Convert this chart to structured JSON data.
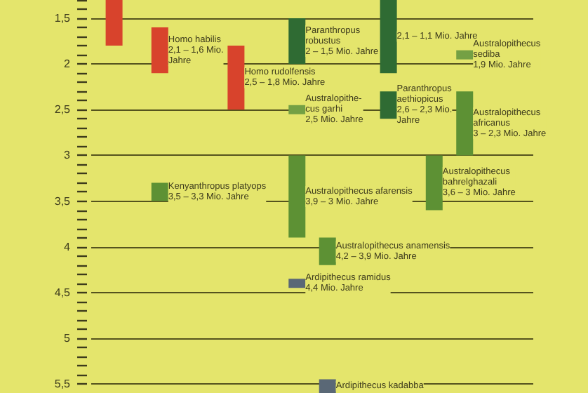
{
  "chart_data": {
    "type": "bar",
    "tick_labels": "y",
    "grid": "y",
    "categories": [
      null,
      null,
      null,
      null,
      null,
      null,
      null,
      null,
      null,
      null,
      null,
      null,
      null,
      null,
      null,
      null,
      null,
      null,
      null,
      null,
      null,
      null,
      null,
      null,
      null,
      null,
      null,
      null,
      null
    ],
    "ylim": [
      5.6,
      1.3
    ],
    "yticks": [
      {
        "value": 1.3,
        "label": null
      },
      {
        "value": 1.4,
        "label": null
      },
      {
        "value": 1.5,
        "label": "1,5"
      },
      {
        "value": 1.6,
        "label": null
      },
      {
        "value": 1.7,
        "label": null
      },
      {
        "value": 1.8,
        "label": null
      },
      {
        "value": 1.9,
        "label": null
      },
      2,
      {
        "value": 2.1,
        "label": null
      },
      {
        "value": 2.2,
        "label": null
      },
      {
        "value": 2.3,
        "label": null
      },
      {
        "value": 2.4,
        "label": null
      },
      {
        "value": 2.5,
        "label": "2,5"
      },
      {
        "value": 2.6,
        "label": null
      },
      {
        "value": 2.7,
        "label": null
      },
      {
        "value": 2.8,
        "label": null
      },
      {
        "value": 2.9,
        "label": null
      },
      3,
      {
        "value": 3.1,
        "label": null
      },
      {
        "value": 3.2,
        "label": null
      },
      {
        "value": 3.3,
        "label": null
      },
      {
        "value": 3.4,
        "label": null
      },
      {
        "value": 3.5,
        "label": "3,5"
      },
      {
        "value": 3.6,
        "label": null
      },
      {
        "value": 3.7,
        "label": null
      },
      {
        "value": 3.8,
        "label": null
      },
      {
        "value": 3.9,
        "label": null
      },
      4,
      {
        "value": 4.1,
        "label": null
      },
      {
        "value": 4.2,
        "label": null
      },
      {
        "value": 4.3,
        "label": null
      },
      {
        "value": 4.4,
        "label": null
      },
      {
        "value": 4.5,
        "label": "4,5"
      },
      {
        "value": 4.6,
        "label": null
      },
      {
        "value": 4.7,
        "label": null
      },
      {
        "value": 4.8,
        "label": null
      },
      {
        "value": 4.9,
        "label": null
      },
      5,
      {
        "value": 5.1,
        "label": null
      },
      {
        "value": 5.2,
        "label": null
      },
      {
        "value": 5.3,
        "label": null
      },
      {
        "value": 5.4,
        "label": null
      },
      {
        "value": 5.5,
        "label": "5,5"
      }
    ],
    "series": [
      {
        "color": "#d8432c",
        "values": [
          null,
          0.5,
          null,
          null,
          null,
          null,
          null,
          null,
          null,
          null,
          null,
          null,
          null,
          null,
          null,
          null,
          null,
          null,
          null,
          null,
          null,
          null,
          null,
          null,
          null,
          null,
          null,
          null,
          null
        ],
        "base": [
          null,
          1.3,
          null,
          null,
          null,
          null,
          null,
          null,
          null,
          null,
          null,
          null,
          null,
          null,
          null,
          null,
          null,
          null,
          null,
          null,
          null,
          null,
          null,
          null,
          null,
          null,
          null,
          null,
          null
        ]
      },
      {
        "name": "Homo habilis\n2,1 – 1,6 Mio.\nJahre",
        "color": "#d8432c",
        "values": [
          null,
          null,
          null,
          null,
          0.5,
          null,
          null,
          null,
          null,
          null,
          null,
          null,
          null,
          null,
          null,
          null,
          null,
          null,
          null,
          null,
          null,
          null,
          null,
          null,
          null,
          null,
          null,
          null,
          null
        ],
        "base": [
          null,
          null,
          null,
          null,
          1.6,
          null,
          null,
          null,
          null,
          null,
          null,
          null,
          null,
          null,
          null,
          null,
          null,
          null,
          null,
          null,
          null,
          null,
          null,
          null,
          null,
          null,
          null,
          null,
          null
        ]
      },
      {
        "name": "Homo rudolfensis\n2,5 – 1,8 Mio. Jahre",
        "color": "#d8432c",
        "values": [
          null,
          null,
          null,
          null,
          null,
          null,
          null,
          null,
          null,
          0.7,
          null,
          null,
          null,
          null,
          null,
          null,
          null,
          null,
          null,
          null,
          null,
          null,
          null,
          null,
          null,
          null,
          null,
          null,
          null
        ],
        "base": [
          null,
          null,
          null,
          null,
          null,
          null,
          null,
          null,
          null,
          1.8,
          null,
          null,
          null,
          null,
          null,
          null,
          null,
          null,
          null,
          null,
          null,
          null,
          null,
          null,
          null,
          null,
          null,
          null,
          null
        ]
      },
      {
        "name": "Paranthropus\nrobustus\n2 – 1,5 Mio. Jahre",
        "color": "#2f6b33",
        "values": [
          null,
          null,
          null,
          null,
          null,
          null,
          null,
          null,
          null,
          null,
          null,
          null,
          null,
          0.5,
          null,
          null,
          null,
          null,
          null,
          null,
          null,
          null,
          null,
          null,
          null,
          null,
          null,
          null,
          null
        ],
        "base": [
          null,
          null,
          null,
          null,
          null,
          null,
          null,
          null,
          null,
          null,
          null,
          null,
          null,
          1.5,
          null,
          null,
          null,
          null,
          null,
          null,
          null,
          null,
          null,
          null,
          null,
          null,
          null,
          null,
          null
        ]
      },
      {
        "name": "2,1 – 1,1 Mio. Jahre",
        "color": "#2f6b33",
        "values": [
          null,
          null,
          null,
          null,
          null,
          null,
          null,
          null,
          null,
          null,
          null,
          null,
          null,
          null,
          null,
          null,
          null,
          null,
          null,
          0.8,
          null,
          null,
          null,
          null,
          null,
          null,
          null,
          null,
          null
        ],
        "base": [
          null,
          null,
          null,
          null,
          null,
          null,
          null,
          null,
          null,
          null,
          null,
          null,
          null,
          null,
          null,
          null,
          null,
          null,
          null,
          1.3,
          null,
          null,
          null,
          null,
          null,
          null,
          null,
          null,
          null
        ]
      },
      {
        "name": "Paranthropus\naethiopicus\n2,6 – 2,3 Mio.\nJahre",
        "color": "#2f6b33",
        "values": [
          null,
          null,
          null,
          null,
          null,
          null,
          null,
          null,
          null,
          null,
          null,
          null,
          null,
          null,
          null,
          null,
          null,
          null,
          null,
          0.3,
          null,
          null,
          null,
          null,
          null,
          null,
          null,
          null,
          null
        ],
        "base": [
          null,
          null,
          null,
          null,
          null,
          null,
          null,
          null,
          null,
          null,
          null,
          null,
          null,
          null,
          null,
          null,
          null,
          null,
          null,
          2.3,
          null,
          null,
          null,
          null,
          null,
          null,
          null,
          null,
          null
        ]
      },
      {
        "name": "Kenyanthropus platyops\n3,5 – 3,3 Mio. Jahre",
        "color": "#5d9134",
        "values": [
          null,
          null,
          null,
          null,
          0.2,
          null,
          null,
          null,
          null,
          null,
          null,
          null,
          null,
          null,
          null,
          null,
          null,
          null,
          null,
          null,
          null,
          null,
          null,
          null,
          null,
          null,
          null,
          null,
          null
        ],
        "base": [
          null,
          null,
          null,
          null,
          3.3,
          null,
          null,
          null,
          null,
          null,
          null,
          null,
          null,
          null,
          null,
          null,
          null,
          null,
          null,
          null,
          null,
          null,
          null,
          null,
          null,
          null,
          null,
          null,
          null
        ]
      },
      {
        "name": "Australopithecus afarensis\n3,9 – 3 Mio. Jahre",
        "color": "#5d9134",
        "values": [
          null,
          null,
          null,
          null,
          null,
          null,
          null,
          null,
          null,
          null,
          null,
          null,
          null,
          0.9,
          null,
          null,
          null,
          null,
          null,
          null,
          null,
          null,
          null,
          null,
          null,
          null,
          null,
          null,
          null
        ],
        "base": [
          null,
          null,
          null,
          null,
          null,
          null,
          null,
          null,
          null,
          null,
          null,
          null,
          null,
          3,
          null,
          null,
          null,
          null,
          null,
          null,
          null,
          null,
          null,
          null,
          null,
          null,
          null,
          null,
          null
        ]
      },
      {
        "name": "Australopithecus anamensis\n4,2 – 3,9 Mio. Jahre",
        "color": "#5d9134",
        "values": [
          null,
          null,
          null,
          null,
          null,
          null,
          null,
          null,
          null,
          null,
          null,
          null,
          null,
          null,
          null,
          0.3,
          null,
          null,
          null,
          null,
          null,
          null,
          null,
          null,
          null,
          null,
          null,
          null,
          null
        ],
        "base": [
          null,
          null,
          null,
          null,
          null,
          null,
          null,
          null,
          null,
          null,
          null,
          null,
          null,
          null,
          null,
          3.9,
          null,
          null,
          null,
          null,
          null,
          null,
          null,
          null,
          null,
          null,
          null,
          null,
          null
        ]
      },
      {
        "name": "Australopithecus\nbahrelghazali\n3,6 – 3 Mio. Jahre",
        "color": "#5d9134",
        "values": [
          null,
          null,
          null,
          null,
          null,
          null,
          null,
          null,
          null,
          null,
          null,
          null,
          null,
          null,
          null,
          null,
          null,
          null,
          null,
          null,
          null,
          null,
          0.6,
          null,
          null,
          null,
          null,
          null,
          null
        ],
        "base": [
          null,
          null,
          null,
          null,
          null,
          null,
          null,
          null,
          null,
          null,
          null,
          null,
          null,
          null,
          null,
          null,
          null,
          null,
          null,
          null,
          null,
          null,
          3,
          null,
          null,
          null,
          null,
          null,
          null
        ]
      },
      {
        "name": "Australopithecus\nafricanus\n3 – 2,3 Mio. Jahre",
        "color": "#5d9134",
        "values": [
          null,
          null,
          null,
          null,
          null,
          null,
          null,
          null,
          null,
          null,
          null,
          null,
          null,
          null,
          null,
          null,
          null,
          null,
          null,
          null,
          null,
          null,
          null,
          null,
          0.7,
          null,
          null,
          null,
          null
        ],
        "base": [
          null,
          null,
          null,
          null,
          null,
          null,
          null,
          null,
          null,
          null,
          null,
          null,
          null,
          null,
          null,
          null,
          null,
          null,
          null,
          null,
          null,
          null,
          null,
          null,
          2.3,
          null,
          null,
          null,
          null
        ]
      },
      {
        "name": "Australopithe-\ncus garhi\n2,5 Mio. Jahre",
        "color": "#74a044",
        "values": [
          null,
          null,
          null,
          null,
          null,
          null,
          null,
          null,
          null,
          null,
          null,
          null,
          null,
          0.1,
          null,
          null,
          null,
          null,
          null,
          null,
          null,
          null,
          null,
          null,
          null,
          null,
          null,
          null,
          null
        ],
        "base": [
          null,
          null,
          null,
          null,
          null,
          null,
          null,
          null,
          null,
          null,
          null,
          null,
          null,
          2.45,
          null,
          null,
          null,
          null,
          null,
          null,
          null,
          null,
          null,
          null,
          null,
          null,
          null,
          null,
          null
        ]
      },
      {
        "name": "Australopithecus\nsediba\n1,9 Mio. Jahre",
        "color": "#74a044",
        "values": [
          null,
          null,
          null,
          null,
          null,
          null,
          null,
          null,
          null,
          null,
          null,
          null,
          null,
          null,
          null,
          null,
          null,
          null,
          null,
          null,
          null,
          null,
          null,
          null,
          0.1,
          null,
          null,
          null,
          null
        ],
        "base": [
          null,
          null,
          null,
          null,
          null,
          null,
          null,
          null,
          null,
          null,
          null,
          null,
          null,
          null,
          null,
          null,
          null,
          null,
          null,
          null,
          null,
          null,
          null,
          null,
          1.85,
          null,
          null,
          null,
          null
        ]
      },
      {
        "name": "Ardipithecus ramidus\n4,4 Mio. Jahre",
        "color": "#5a6876",
        "values": [
          null,
          null,
          null,
          null,
          null,
          null,
          null,
          null,
          null,
          null,
          null,
          null,
          null,
          0.1,
          null,
          null,
          null,
          null,
          null,
          null,
          null,
          null,
          null,
          null,
          null,
          null,
          null,
          null,
          null
        ],
        "base": [
          null,
          null,
          null,
          null,
          null,
          null,
          null,
          null,
          null,
          null,
          null,
          null,
          null,
          4.35,
          null,
          null,
          null,
          null,
          null,
          null,
          null,
          null,
          null,
          null,
          null,
          null,
          null,
          null,
          null
        ]
      },
      {
        "name": "Ardipithecus kadabba",
        "color": "#5a6876",
        "values": [
          null,
          null,
          null,
          null,
          null,
          null,
          null,
          null,
          null,
          null,
          null,
          null,
          null,
          null,
          null,
          0.15,
          null,
          null,
          null,
          null,
          null,
          null,
          null,
          null,
          null,
          null,
          null,
          null,
          null
        ],
        "base": [
          null,
          null,
          null,
          null,
          null,
          null,
          null,
          null,
          null,
          null,
          null,
          null,
          null,
          null,
          null,
          5.45,
          null,
          null,
          null,
          null,
          null,
          null,
          null,
          null,
          null,
          null,
          null,
          null,
          null
        ]
      }
    ]
  }
}
